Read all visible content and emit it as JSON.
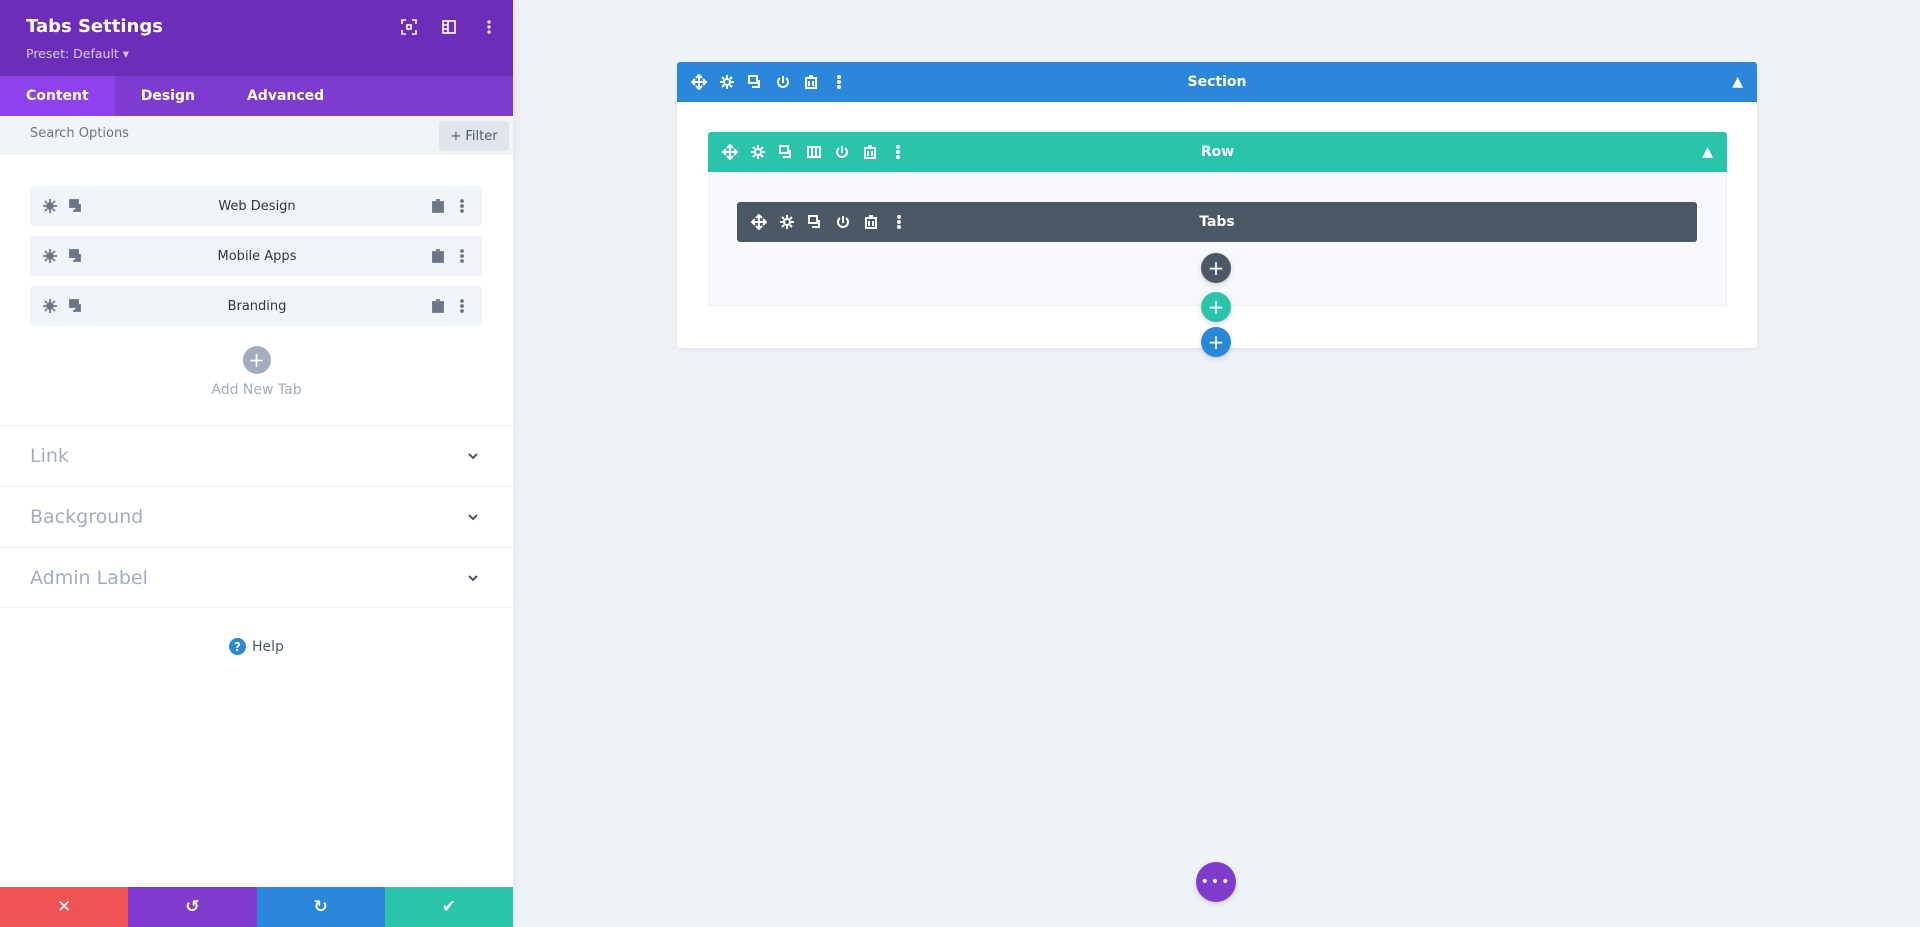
{
  "sidebar": {
    "title": "Tabs Settings",
    "preset": "Preset: Default ▾",
    "tabs": [
      {
        "label": "Content"
      },
      {
        "label": "Design"
      },
      {
        "label": "Advanced"
      }
    ],
    "search_placeholder": "Search Options",
    "filter_label": "Filter",
    "items": [
      {
        "label": "Web Design"
      },
      {
        "label": "Mobile Apps"
      },
      {
        "label": "Branding"
      }
    ],
    "add_tab_label": "Add New Tab",
    "toggles": [
      {
        "label": "Link"
      },
      {
        "label": "Background"
      },
      {
        "label": "Admin Label"
      }
    ],
    "help_label": "Help"
  },
  "canvas": {
    "section_label": "Section",
    "row_label": "Row",
    "module_label": "Tabs"
  },
  "colors": {
    "purple_header": "#6c2eb9",
    "section": "#2b87da",
    "row": "#29c4a9",
    "module": "#4c5866",
    "cancel": "#ef5555",
    "undo": "#7e3bcd",
    "redo": "#2b87da",
    "save": "#29c4a9"
  }
}
